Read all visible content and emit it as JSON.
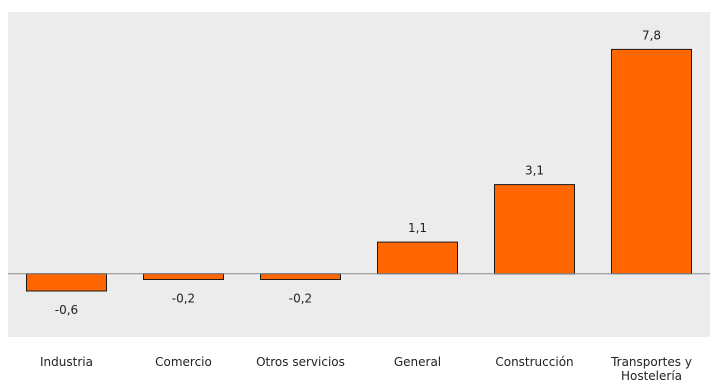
{
  "chart_data": {
    "type": "bar",
    "categories": [
      "Industria",
      "Comercio",
      "Otros servicios",
      "General",
      "Construcción",
      "Transportes y Hostelería"
    ],
    "category_lines": [
      [
        "Industria"
      ],
      [
        "Comercio"
      ],
      [
        "Otros servicios"
      ],
      [
        "General"
      ],
      [
        "Construcción"
      ],
      [
        "Transportes y",
        "Hostelería"
      ]
    ],
    "values": [
      -0.6,
      -0.2,
      -0.2,
      1.1,
      3.1,
      7.8
    ],
    "value_labels": [
      "-0,6",
      "-0,2",
      "-0,2",
      "1,1",
      "3,1",
      "7,8"
    ],
    "title": "",
    "xlabel": "",
    "ylabel": "",
    "ylim": [
      -2.2,
      9.1
    ],
    "grid": false,
    "legend": "none",
    "plot_background": "#ececec",
    "bar_color": "#ff6600",
    "bar_border": "#1a1a1a",
    "zero_line_color": "#8c8c8c"
  }
}
